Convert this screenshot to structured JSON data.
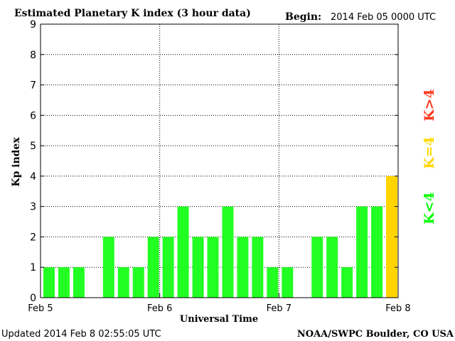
{
  "chart_data": {
    "type": "bar",
    "title": "Estimated Planetary K index (3 hour data)",
    "begin_label": "Begin:",
    "begin_value": "2014 Feb 05 0000 UTC",
    "xlabel": "Universal Time",
    "ylabel": "Kp index",
    "ylim": [
      0,
      9
    ],
    "yticks": [
      "0",
      "1",
      "2",
      "3",
      "4",
      "5",
      "6",
      "7",
      "8",
      "9"
    ],
    "xticks": [
      "Feb 5",
      "Feb 6",
      "Feb 7",
      "Feb 8"
    ],
    "bar_interval_hours": 3,
    "values": [
      1,
      1,
      1,
      null,
      2,
      1,
      1,
      2,
      2,
      3,
      2,
      2,
      3,
      2,
      2,
      1,
      1,
      null,
      2,
      2,
      1,
      3,
      3,
      4
    ],
    "grid": true,
    "legend": [
      {
        "label": "K<4",
        "color": "#00ff00"
      },
      {
        "label": "K=4",
        "color": "#ffd700"
      },
      {
        "label": "K>4",
        "color": "#ff3a1f"
      }
    ],
    "bar_colors": {
      "low": "#22ff22",
      "storm_threshold": "#ffd400",
      "high": "#ff3a1f"
    }
  },
  "footer": {
    "updated": "Updated 2014 Feb  8 02:55:05 UTC",
    "source": "NOAA/SWPC Boulder, CO USA"
  }
}
